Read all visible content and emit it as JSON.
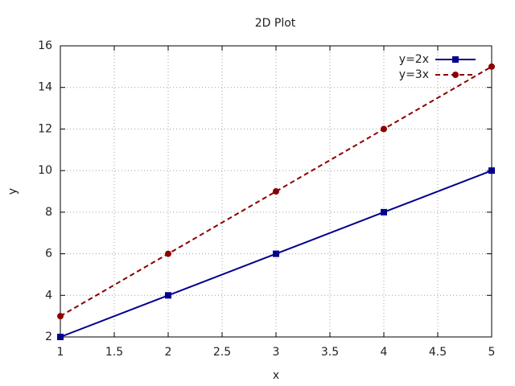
{
  "chart_data": {
    "type": "line",
    "title": "2D Plot",
    "x_label": "x",
    "y_label": "y",
    "x": [
      1,
      2,
      3,
      4,
      5
    ],
    "series": [
      {
        "name": "y=2x",
        "color": "#00008b",
        "values": [
          2,
          4,
          6,
          8,
          10
        ],
        "marker": "square",
        "dashed": false
      },
      {
        "name": "y=3x",
        "color": "#8b0000",
        "values": [
          3,
          6,
          9,
          12,
          15
        ],
        "marker": "circle",
        "dashed": true
      }
    ],
    "xlim": [
      1,
      5
    ],
    "xticks": [
      1,
      1.5,
      2,
      2.5,
      3,
      3.5,
      4,
      4.5,
      5
    ],
    "ylim": [
      2,
      16
    ],
    "yticks": [
      2,
      4,
      6,
      8,
      10,
      12,
      14,
      16
    ],
    "grid": true,
    "legend": "top-right"
  }
}
